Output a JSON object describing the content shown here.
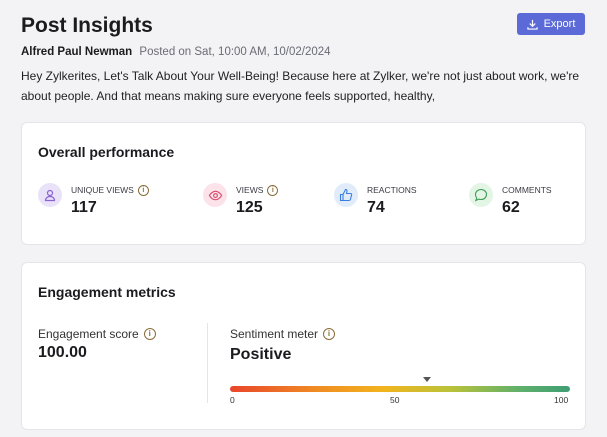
{
  "header": {
    "title": "Post Insights",
    "export_label": "Export"
  },
  "post": {
    "author": "Alfred Paul Newman",
    "posted": "Posted on Sat, 10:00 AM, 10/02/2024",
    "text": "Hey Zylkerites, Let's Talk About Your Well-Being! Because here at Zylker, we're not just about work, we're about people. And that means making sure everyone feels supported, healthy,"
  },
  "performance": {
    "title": "Overall performance",
    "stats": [
      {
        "label": "UNIQUE VIEWS",
        "value": "117",
        "icon": "user-icon",
        "color": "#e9e2f8"
      },
      {
        "label": "VIEWS",
        "value": "125",
        "icon": "eye-icon",
        "color": "#fbe3e9"
      },
      {
        "label": "REACTIONS",
        "value": "74",
        "icon": "thumbs-up-icon",
        "color": "#e1ecfb"
      },
      {
        "label": "COMMENTS",
        "value": "62",
        "icon": "comment-icon",
        "color": "#e3f5e4"
      }
    ]
  },
  "engagement": {
    "title": "Engagement metrics",
    "score_label": "Engagement score",
    "score_value": "100.00",
    "sentiment_label": "Sentiment meter",
    "sentiment_value": "Positive",
    "meter_position": 58,
    "ticks": [
      "0",
      "50",
      "100"
    ]
  },
  "colors": {
    "accent": "#5b6ad6",
    "background": "#f3f3f5"
  }
}
